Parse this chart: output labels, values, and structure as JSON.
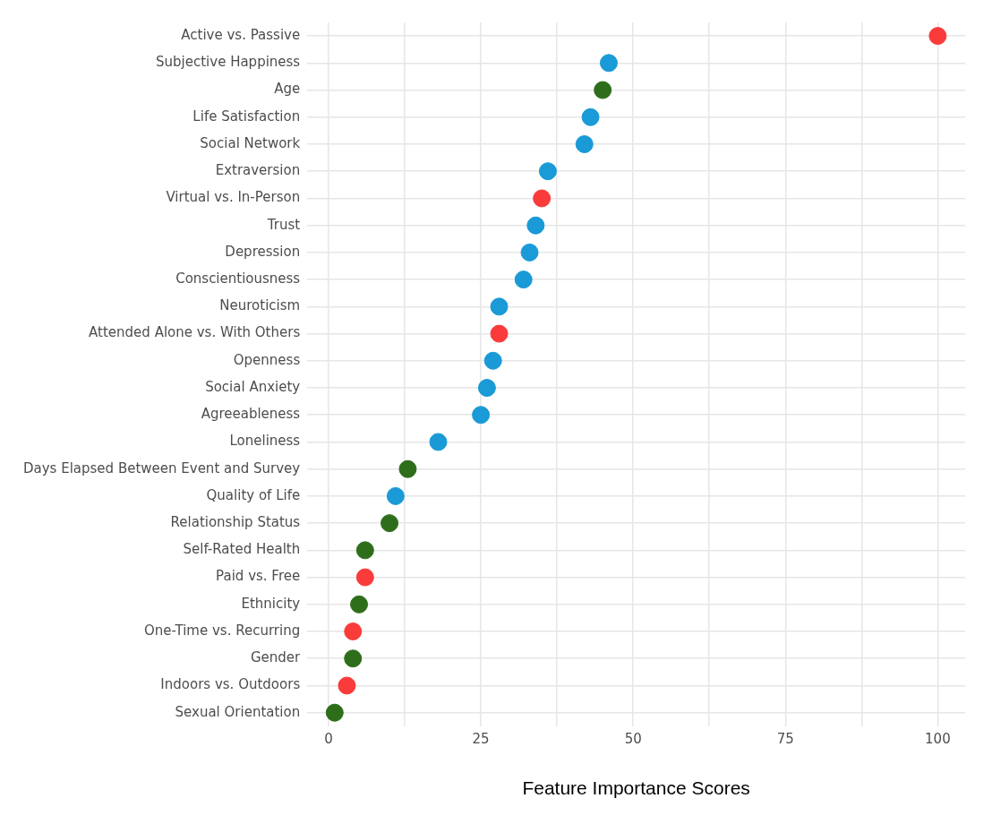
{
  "chart_data": {
    "type": "scatter",
    "orientation": "horizontal",
    "xlabel": "Feature Importance Scores",
    "categories": [
      "Active vs. Passive",
      "Subjective Happiness",
      "Age",
      "Life Satisfaction",
      "Social Network",
      "Extraversion",
      "Virtual vs. In-Person",
      "Trust",
      "Depression",
      "Conscientiousness",
      "Neuroticism",
      "Attended Alone vs. With Others",
      "Openness",
      "Social Anxiety",
      "Agreeableness",
      "Loneliness",
      "Days Elapsed Between Event and Survey",
      "Quality of Life",
      "Relationship Status",
      "Self-Rated Health",
      "Paid vs. Free",
      "Ethnicity",
      "One-Time vs. Recurring",
      "Gender",
      "Indoors vs. Outdoors",
      "Sexual Orientation"
    ],
    "values": [
      100,
      46,
      45,
      43,
      42,
      36,
      35,
      34,
      33,
      32,
      28,
      28,
      27,
      26,
      25,
      18,
      13,
      11,
      10,
      6,
      6,
      5,
      4,
      4,
      3,
      1
    ],
    "colors": [
      "#f93b3b",
      "#1a9ad6",
      "#2e6e1a",
      "#1a9ad6",
      "#1a9ad6",
      "#1a9ad6",
      "#f93b3b",
      "#1a9ad6",
      "#1a9ad6",
      "#1a9ad6",
      "#1a9ad6",
      "#f93b3b",
      "#1a9ad6",
      "#1a9ad6",
      "#1a9ad6",
      "#1a9ad6",
      "#2e6e1a",
      "#1a9ad6",
      "#2e6e1a",
      "#2e6e1a",
      "#f93b3b",
      "#2e6e1a",
      "#f93b3b",
      "#2e6e1a",
      "#f93b3b",
      "#2e6e1a"
    ],
    "xlim": [
      -3.5,
      104.5
    ],
    "xticks": [
      0,
      {
        "value": 12.5,
        "label": null
      },
      25,
      {
        "value": 37.5,
        "label": null
      },
      50,
      {
        "value": 62.5,
        "label": null
      },
      75,
      {
        "value": 87.5,
        "label": null
      },
      100
    ],
    "grid": true,
    "marker": "circle",
    "legend": false
  }
}
